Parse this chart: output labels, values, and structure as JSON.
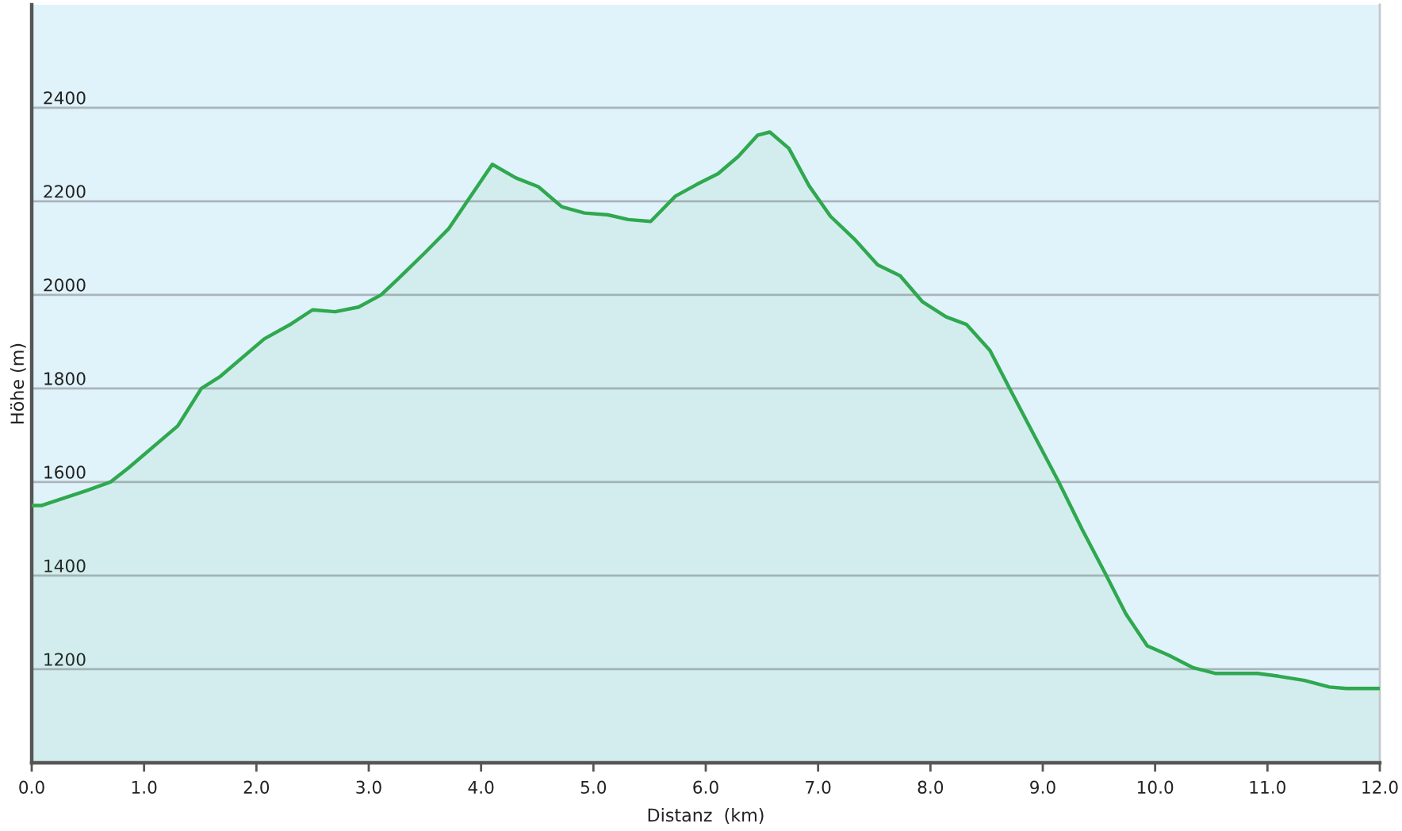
{
  "chart_data": {
    "type": "area",
    "xlabel": "Distanz  (km)",
    "ylabel": "Höhe (m)",
    "x": [
      0.0,
      0.09,
      0.49,
      0.7,
      0.86,
      1.3,
      1.51,
      1.68,
      2.07,
      2.31,
      2.5,
      2.7,
      2.91,
      3.11,
      3.26,
      3.5,
      3.71,
      4.1,
      4.31,
      4.51,
      4.72,
      4.92,
      5.13,
      5.31,
      5.51,
      5.73,
      5.92,
      6.11,
      6.29,
      6.46,
      6.57,
      6.74,
      6.92,
      7.11,
      7.32,
      7.53,
      7.73,
      7.93,
      8.14,
      8.32,
      8.53,
      8.72,
      8.93,
      9.14,
      9.35,
      9.56,
      9.74,
      9.93,
      10.12,
      10.34,
      10.54,
      10.91,
      11.1,
      11.33,
      11.55,
      11.7,
      12.0
    ],
    "values": [
      1550,
      1550,
      1582,
      1600,
      1630,
      1720,
      1800,
      1826,
      1906,
      1938,
      1968,
      1964,
      1974,
      2000,
      2034,
      2090,
      2141,
      2279,
      2250,
      2231,
      2188,
      2175,
      2171,
      2161,
      2157,
      2211,
      2236,
      2259,
      2296,
      2341,
      2348,
      2313,
      2233,
      2168,
      2120,
      2064,
      2041,
      1985,
      1953,
      1937,
      1881,
      1793,
      1697,
      1601,
      1499,
      1403,
      1318,
      1250,
      1230,
      1203,
      1191,
      1191,
      1185,
      1176,
      1162,
      1159,
      1159
    ],
    "color": "#2fa84f",
    "xlim": [
      0,
      12
    ],
    "xticks": [
      {
        "value": 0,
        "label": "0.0"
      },
      {
        "value": 1,
        "label": "1.0"
      },
      {
        "value": 2,
        "label": "2.0"
      },
      {
        "value": 3,
        "label": "3.0"
      },
      {
        "value": 4,
        "label": "4.0"
      },
      {
        "value": 5,
        "label": "5.0"
      },
      {
        "value": 6,
        "label": "6.0"
      },
      {
        "value": 7,
        "label": "7.0"
      },
      {
        "value": 8,
        "label": "8.0"
      },
      {
        "value": 9,
        "label": "9.0"
      },
      {
        "value": 10,
        "label": "10.0"
      },
      {
        "value": 11,
        "label": "11.0"
      },
      {
        "value": 12,
        "label": "12.0"
      }
    ],
    "ylim": [
      1000,
      2620
    ],
    "yticks": [
      1200,
      1400,
      1600,
      1800,
      2000,
      2200,
      2400
    ],
    "grid": "y"
  }
}
